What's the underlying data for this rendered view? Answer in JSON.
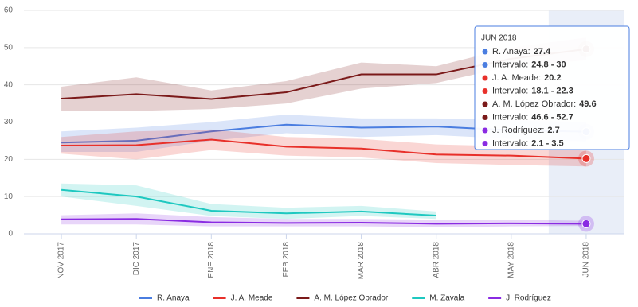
{
  "chart_data": {
    "type": "line",
    "categories": [
      "NOV 2017",
      "DIC 2017",
      "ENE 2018",
      "FEB 2018",
      "MAR 2018",
      "ABR 2018",
      "MAY 2018",
      "JUN 2018"
    ],
    "ylim": [
      0,
      60
    ],
    "yticks": [
      0,
      10,
      20,
      30,
      40,
      50,
      60
    ],
    "grid": true,
    "highlight_category": 7,
    "series": [
      {
        "name": "R. Anaya",
        "color": "#4a7de0",
        "values": [
          24.5,
          25,
          27.5,
          29.3,
          28.5,
          28.8,
          27.8,
          27.4
        ],
        "low": [
          22,
          22,
          25,
          27,
          26,
          26.5,
          25.5,
          24.8
        ],
        "high": [
          27.5,
          28.5,
          30,
          32,
          31,
          31,
          30.5,
          30
        ]
      },
      {
        "name": "J. A. Meade",
        "color": "#e8302a",
        "values": [
          23.7,
          23.8,
          25.3,
          23.4,
          22.9,
          21.3,
          21,
          20.2
        ],
        "low": [
          21.5,
          20,
          22.5,
          21,
          20.5,
          19,
          18.5,
          18.1
        ],
        "high": [
          26,
          27.5,
          28,
          26,
          25.5,
          24,
          23.5,
          22.3
        ]
      },
      {
        "name": "A. M. López Obrador",
        "color": "#7b1a1a",
        "values": [
          36.3,
          37.5,
          36.2,
          38,
          42.8,
          42.8,
          47,
          49.6
        ],
        "low": [
          33,
          33,
          33.5,
          35,
          39,
          40.5,
          45,
          46.6
        ],
        "high": [
          39.5,
          42,
          38.5,
          41,
          46,
          45,
          50,
          52.7
        ]
      },
      {
        "name": "M. Zavala",
        "color": "#1ec8c0",
        "values": [
          11.8,
          10,
          6.2,
          5.5,
          6,
          4.9,
          null,
          null
        ],
        "low": [
          10,
          7.5,
          4.8,
          4,
          4.8,
          4,
          null,
          null
        ],
        "high": [
          13.5,
          13,
          8,
          7,
          7.5,
          6,
          null,
          null
        ]
      },
      {
        "name": "J. Rodríguez",
        "color": "#8a2be2",
        "values": [
          3.9,
          4,
          3.1,
          2.9,
          3,
          2.7,
          2.8,
          2.7
        ],
        "low": [
          2.5,
          2.5,
          2,
          2,
          2,
          1.8,
          2,
          2.1
        ],
        "high": [
          5,
          5.5,
          4.5,
          4,
          4,
          3.8,
          3.8,
          3.5
        ]
      }
    ],
    "tooltip": {
      "title": "JUN 2018",
      "items": [
        {
          "label": "R. Anaya:",
          "value": "27.4",
          "color": "#4a7de0"
        },
        {
          "label": "Intervalo:",
          "value": "24.8 - 30",
          "color": "#4a7de0"
        },
        {
          "label": "J. A. Meade:",
          "value": "20.2",
          "color": "#e8302a"
        },
        {
          "label": "Intervalo:",
          "value": "18.1 - 22.3",
          "color": "#e8302a"
        },
        {
          "label": "A. M. López Obrador:",
          "value": "49.6",
          "color": "#7b1a1a"
        },
        {
          "label": "Intervalo:",
          "value": "46.6 - 52.7",
          "color": "#7b1a1a"
        },
        {
          "label": "J. Rodríguez:",
          "value": "2.7",
          "color": "#8a2be2"
        },
        {
          "label": "Intervalo:",
          "value": "2.1 - 3.5",
          "color": "#8a2be2"
        }
      ]
    }
  }
}
